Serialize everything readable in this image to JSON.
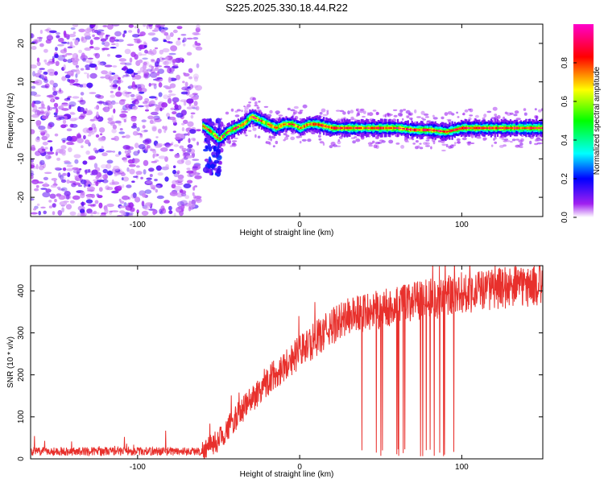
{
  "title": "S225.2025.330.18.44.R22",
  "chart_data": [
    {
      "type": "heatmap",
      "name": "spectrogram",
      "xlabel": "Height of straight line (km)",
      "ylabel": "Frequency (Hz)",
      "xlim": [
        -166,
        150
      ],
      "ylim": [
        -25,
        25
      ],
      "xticks": [
        -100,
        0,
        100
      ],
      "yticks": [
        -20,
        -10,
        0,
        10,
        20
      ],
      "colorbar": {
        "label": "Normalized spectral amplitude",
        "range": [
          0,
          1
        ],
        "ticks": [
          "0.0",
          "0.2",
          "0.4",
          "0.6",
          "0.8"
        ],
        "tick_values": [
          0.0,
          0.2,
          0.4,
          0.6,
          0.8
        ],
        "colors": [
          "#ffffff",
          "#a020f0",
          "#0000ff",
          "#00ffff",
          "#00ff00",
          "#ffff00",
          "#ff0000",
          "#ff00cc"
        ]
      },
      "noise_region_x": [
        -166,
        -62
      ],
      "signal_start_x": -60,
      "tone_track": {
        "x": [
          -60,
          -55,
          -50,
          -45,
          -40,
          -35,
          -30,
          -25,
          -20,
          -15,
          -10,
          -5,
          0,
          5,
          10,
          20,
          40,
          60,
          70,
          80,
          90,
          100,
          110,
          120,
          130,
          150
        ],
        "freq": [
          -1.5,
          -3,
          -5,
          -3,
          -2,
          -1,
          1,
          0,
          -1,
          -2,
          -1,
          -1,
          -2,
          -1,
          -1,
          -2,
          -2,
          -2,
          -2.5,
          -2.5,
          -3,
          -2,
          -2,
          -2,
          -2,
          -2
        ]
      }
    },
    {
      "type": "line",
      "name": "snr",
      "xlabel": "Height of straight line (km)",
      "ylabel": "SNR (10 * v/v)",
      "xlim": [
        -166,
        150
      ],
      "ylim": [
        0,
        460
      ],
      "xticks": [
        -100,
        0,
        100
      ],
      "yticks": [
        0,
        100,
        200,
        300,
        400
      ],
      "color": "#e8302c",
      "trend": {
        "x": [
          -166,
          -60,
          -50,
          -40,
          -30,
          -20,
          -10,
          0,
          10,
          20,
          30,
          40,
          50,
          60,
          70,
          80,
          90,
          100,
          110,
          120,
          130,
          140,
          150
        ],
        "y": [
          18,
          18,
          45,
          95,
          140,
          185,
          220,
          255,
          285,
          315,
          340,
          350,
          355,
          365,
          375,
          380,
          385,
          395,
          400,
          405,
          410,
          410,
          415
        ]
      },
      "dropout_x_range": [
        37,
        97
      ]
    }
  ]
}
